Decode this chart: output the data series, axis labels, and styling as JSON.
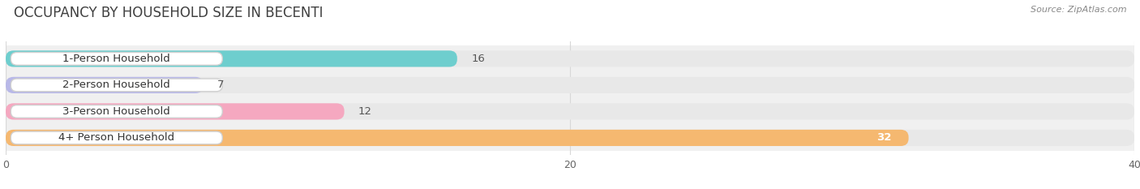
{
  "title": "OCCUPANCY BY HOUSEHOLD SIZE IN BECENTI",
  "source": "Source: ZipAtlas.com",
  "categories": [
    "1-Person Household",
    "2-Person Household",
    "3-Person Household",
    "4+ Person Household"
  ],
  "values": [
    16,
    7,
    12,
    32
  ],
  "bar_colors": [
    "#6ecece",
    "#b8b8e8",
    "#f5a8c0",
    "#f5b870"
  ],
  "xlim": [
    0,
    40
  ],
  "xticks": [
    0,
    20,
    40
  ],
  "title_fontsize": 12,
  "label_fontsize": 9.5,
  "value_fontsize": 9.5,
  "background_color": "#ffffff",
  "bar_height": 0.62,
  "stripe_color": "#f0f0f0",
  "grid_color": "#d8d8d8",
  "label_box_color": "#ffffff",
  "value_label_bold_idx": 3
}
